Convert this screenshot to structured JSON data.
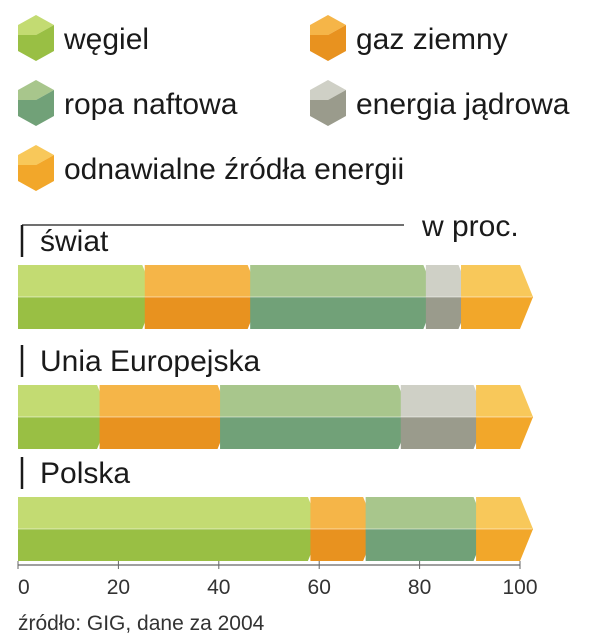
{
  "chart_data": {
    "type": "bar",
    "stacked": true,
    "orientation": "horizontal",
    "unit_label": "w proc.",
    "categories": [
      "świat",
      "Unia Europejska",
      "Polska"
    ],
    "series": [
      {
        "name": "węgiel",
        "values": [
          25,
          16,
          58
        ],
        "color_light": "#c3db72",
        "color_dark": "#99bf44"
      },
      {
        "name": "gaz ziemny",
        "values": [
          21,
          24,
          11
        ],
        "color_light": "#f5b548",
        "color_dark": "#e8921f"
      },
      {
        "name": "ropa naftowa",
        "values": [
          35,
          36,
          22
        ],
        "color_light": "#a8c68c",
        "color_dark": "#71a178"
      },
      {
        "name": "energia jądrowa",
        "values": [
          7,
          15,
          0
        ],
        "color_light": "#cfd0c6",
        "color_dark": "#9a9b8c"
      },
      {
        "name": "odnawialne źródła energii",
        "values": [
          12,
          9,
          9
        ],
        "color_light": "#f8c85a",
        "color_dark": "#f2a72a"
      }
    ],
    "xlim": [
      0,
      100
    ],
    "x_ticks": [
      "0",
      "20",
      "40",
      "60",
      "80",
      "100"
    ],
    "grid": false,
    "legend_position": "top",
    "source": "źródło: GIG, dane za 2004"
  }
}
